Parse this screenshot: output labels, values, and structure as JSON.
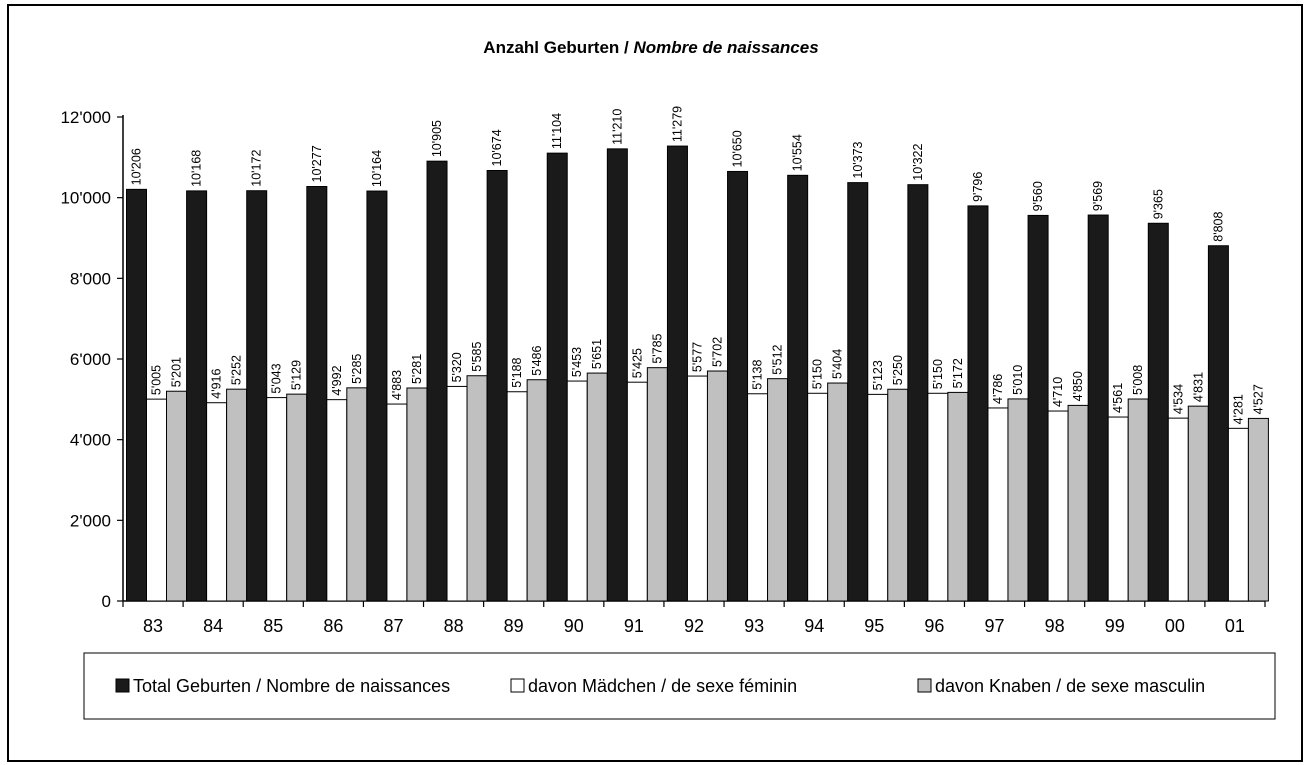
{
  "chart_data": {
    "type": "bar",
    "title": "Anzahl Geburten / ",
    "title_italic": "Nombre de naissances",
    "ylim": [
      0,
      12000
    ],
    "yticks": [
      0,
      2000,
      4000,
      6000,
      8000,
      10000,
      12000
    ],
    "ytick_labels": [
      "0",
      "2'000",
      "4'000",
      "6'000",
      "8'000",
      "10'000",
      "12'000"
    ],
    "categories": [
      "83",
      "84",
      "85",
      "86",
      "87",
      "88",
      "89",
      "90",
      "91",
      "92",
      "93",
      "94",
      "95",
      "96",
      "97",
      "98",
      "99",
      "00",
      "01"
    ],
    "legend_position": "bottom",
    "grid": false,
    "series": [
      {
        "name": "Total Geburten / Nombre de naissances",
        "color": "#1a1a1a",
        "values": [
          10206,
          10168,
          10172,
          10277,
          10164,
          10905,
          10674,
          11104,
          11210,
          11279,
          10650,
          10554,
          10373,
          10322,
          9796,
          9560,
          9569,
          9365,
          8808
        ],
        "labels": [
          "10'206",
          "10'168",
          "10'172",
          "10'277",
          "10'164",
          "10'905",
          "10'674",
          "11'104",
          "11'210",
          "11'279",
          "10'650",
          "10'554",
          "10'373",
          "10'322",
          "9'796",
          "9'560",
          "9'569",
          "9'365",
          "8'808"
        ]
      },
      {
        "name": "davon Mädchen / de sexe féminin",
        "color": "#ffffff",
        "values": [
          5005,
          4916,
          5043,
          4992,
          4883,
          5320,
          5188,
          5453,
          5425,
          5577,
          5138,
          5150,
          5123,
          5150,
          4786,
          4710,
          4561,
          4534,
          4281
        ],
        "labels": [
          "5'005",
          "4'916",
          "5'043",
          "4'992",
          "4'883",
          "5'320",
          "5'188",
          "5'453",
          "5'425",
          "5'577",
          "5'138",
          "5'150",
          "5'123",
          "5'150",
          "4'786",
          "4'710",
          "4'561",
          "4'534",
          "4'281"
        ]
      },
      {
        "name": "davon Knaben / de sexe masculin",
        "color": "#c0c0c0",
        "values": [
          5201,
          5252,
          5129,
          5285,
          5281,
          5585,
          5486,
          5651,
          5785,
          5702,
          5512,
          5404,
          5250,
          5172,
          5010,
          4850,
          5008,
          4831,
          4527
        ],
        "labels": [
          "5'201",
          "5'252",
          "5'129",
          "5'285",
          "5'281",
          "5'585",
          "5'486",
          "5'651",
          "5'785",
          "5'702",
          "5'512",
          "5'404",
          "5'250",
          "5'172",
          "5'010",
          "4'850",
          "5'008",
          "4'831",
          "4'527"
        ]
      }
    ]
  }
}
